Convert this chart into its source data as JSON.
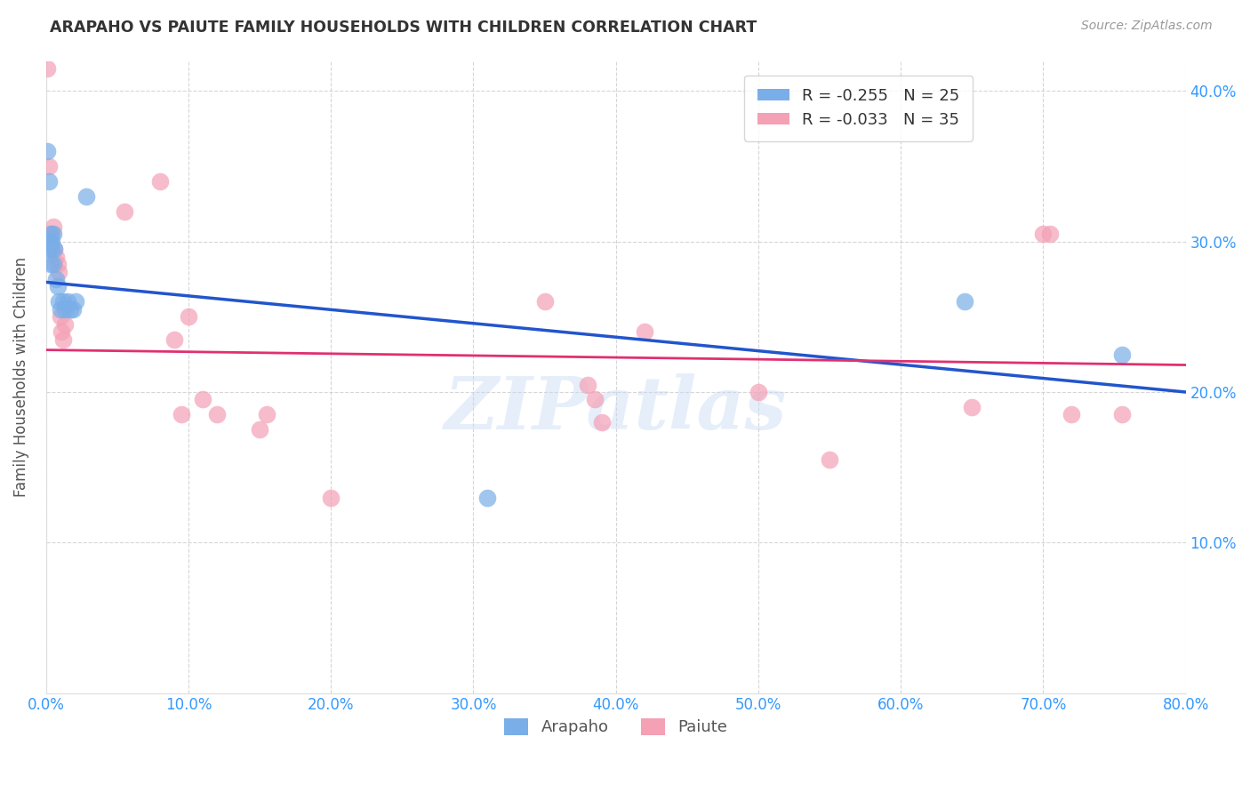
{
  "title": "ARAPAHO VS PAIUTE FAMILY HOUSEHOLDS WITH CHILDREN CORRELATION CHART",
  "source": "Source: ZipAtlas.com",
  "ylabel": "Family Households with Children",
  "arapaho_color": "#7aaee8",
  "paiute_color": "#f4a0b5",
  "arapaho_line_color": "#2255cc",
  "paiute_line_color": "#e03070",
  "watermark": "ZIPatlas",
  "arapaho_R": -0.255,
  "arapaho_N": 25,
  "paiute_R": -0.033,
  "paiute_N": 35,
  "xlim": [
    0.0,
    0.8
  ],
  "ylim": [
    0.0,
    0.42
  ],
  "xticks": [
    0.0,
    0.1,
    0.2,
    0.3,
    0.4,
    0.5,
    0.6,
    0.7,
    0.8
  ],
  "yticks": [
    0.1,
    0.2,
    0.3,
    0.4
  ],
  "arapaho_line_x0": 0.0,
  "arapaho_line_y0": 0.273,
  "arapaho_line_x1": 0.8,
  "arapaho_line_y1": 0.2,
  "paiute_line_x0": 0.0,
  "paiute_line_y0": 0.228,
  "paiute_line_x1": 0.8,
  "paiute_line_y1": 0.218,
  "arapaho_x": [
    0.001,
    0.002,
    0.002,
    0.003,
    0.003,
    0.003,
    0.004,
    0.004,
    0.005,
    0.005,
    0.006,
    0.007,
    0.008,
    0.009,
    0.01,
    0.012,
    0.013,
    0.015,
    0.017,
    0.019,
    0.021,
    0.028,
    0.31,
    0.645,
    0.755
  ],
  "arapaho_y": [
    0.36,
    0.34,
    0.295,
    0.305,
    0.3,
    0.285,
    0.3,
    0.295,
    0.305,
    0.285,
    0.295,
    0.275,
    0.27,
    0.26,
    0.255,
    0.26,
    0.255,
    0.26,
    0.255,
    0.255,
    0.26,
    0.33,
    0.13,
    0.26,
    0.225
  ],
  "paiute_x": [
    0.001,
    0.002,
    0.003,
    0.004,
    0.005,
    0.006,
    0.007,
    0.008,
    0.009,
    0.01,
    0.011,
    0.012,
    0.013,
    0.055,
    0.08,
    0.09,
    0.095,
    0.1,
    0.11,
    0.12,
    0.15,
    0.155,
    0.2,
    0.35,
    0.38,
    0.385,
    0.39,
    0.42,
    0.5,
    0.55,
    0.65,
    0.7,
    0.705,
    0.72,
    0.755
  ],
  "paiute_y": [
    0.415,
    0.35,
    0.305,
    0.305,
    0.31,
    0.295,
    0.29,
    0.285,
    0.28,
    0.25,
    0.24,
    0.235,
    0.245,
    0.32,
    0.34,
    0.235,
    0.185,
    0.25,
    0.195,
    0.185,
    0.175,
    0.185,
    0.13,
    0.26,
    0.205,
    0.195,
    0.18,
    0.24,
    0.2,
    0.155,
    0.19,
    0.305,
    0.305,
    0.185,
    0.185
  ]
}
